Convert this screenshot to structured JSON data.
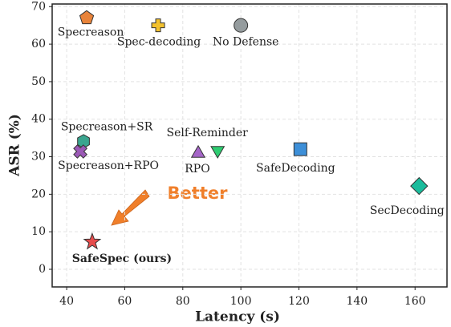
{
  "chart_data": {
    "type": "scatter",
    "xlabel": "Latency (s)",
    "ylabel": "ASR (%)",
    "xlim": [
      35,
      171
    ],
    "ylim": [
      -4.7,
      70.7
    ],
    "xticks": [
      40,
      60,
      80,
      100,
      120,
      140,
      160
    ],
    "yticks": [
      0,
      10,
      20,
      30,
      40,
      50,
      60,
      70
    ],
    "grid": true,
    "annotation": "Better",
    "series": [
      {
        "name": "Specreason",
        "color": "#e8833a",
        "marker": "pentagon",
        "x": [
          46.9
        ],
        "values": [
          67
        ]
      },
      {
        "name": "Spec-decoding",
        "color": "#f2c12e",
        "marker": "plus",
        "x": [
          71.5
        ],
        "values": [
          65
        ]
      },
      {
        "name": "No Defense",
        "color": "#959c9e",
        "marker": "circle",
        "x": [
          100
        ],
        "values": [
          65
        ]
      },
      {
        "name": "Specreason+SR",
        "color": "#3aa58f",
        "marker": "hexagon",
        "x": [
          45.8
        ],
        "values": [
          34.1
        ]
      },
      {
        "name": "Specreason+RPO",
        "color": "#9b59b6",
        "marker": "x",
        "x": [
          44.7
        ],
        "values": [
          31.4
        ]
      },
      {
        "name": "RPO",
        "color": "#a566c8",
        "marker": "triangle",
        "x": [
          85.3
        ],
        "values": [
          31.2
        ]
      },
      {
        "name": "Self-Reminder",
        "color": "#2ecc71",
        "marker": "triangle-down",
        "x": [
          92
        ],
        "values": [
          31.4
        ]
      },
      {
        "name": "SafeDecoding",
        "color": "#3d8fd8",
        "marker": "square",
        "x": [
          120.5
        ],
        "values": [
          32
        ]
      },
      {
        "name": "SecDecoding",
        "color": "#1abc9c",
        "marker": "diamond",
        "x": [
          161.4
        ],
        "values": [
          22.2
        ]
      },
      {
        "name": "SafeSpec (ours)",
        "color": "#e74c4c",
        "marker": "star",
        "x": [
          48.8
        ],
        "values": [
          7.3
        ]
      }
    ]
  }
}
